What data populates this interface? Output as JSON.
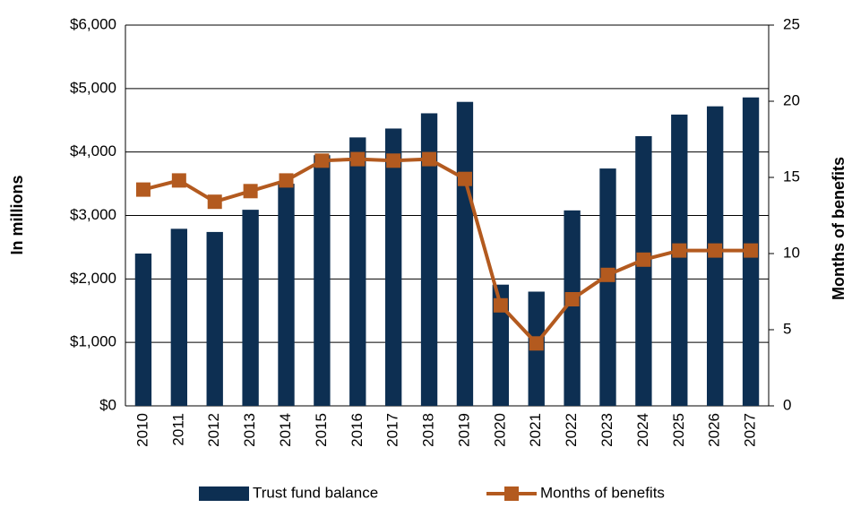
{
  "chart_data": {
    "type": "bar_line",
    "categories": [
      "2010",
      "2011",
      "2012",
      "2013",
      "2014",
      "2015",
      "2016",
      "2017",
      "2018",
      "2019",
      "2020",
      "2021",
      "2022",
      "2023",
      "2024",
      "2025",
      "2026",
      "2027"
    ],
    "series": [
      {
        "name": "Trust fund balance",
        "type": "bar",
        "color": "#0d2f52",
        "values": [
          2400,
          2790,
          2740,
          3090,
          3500,
          3950,
          4230,
          4370,
          4610,
          4790,
          1910,
          1800,
          3080,
          3740,
          4250,
          4590,
          4720,
          4860
        ]
      },
      {
        "name": "Months of benefits",
        "type": "line",
        "axis": "y2",
        "color": "#b35a1f",
        "values": [
          14.2,
          14.8,
          13.4,
          14.1,
          14.8,
          16.1,
          16.2,
          16.1,
          16.2,
          14.9,
          6.6,
          4.1,
          7.0,
          8.6,
          9.6,
          10.2,
          10.2,
          10.2
        ]
      }
    ],
    "ylabel": "In millions",
    "y2label": "Months of benefits",
    "ylim": [
      0,
      6000
    ],
    "yticks": [
      {
        "value": 0,
        "label": "$0"
      },
      {
        "value": 1000,
        "label": "$1,000"
      },
      {
        "value": 2000,
        "label": "$2,000"
      },
      {
        "value": 3000,
        "label": "$3,000"
      },
      {
        "value": 4000,
        "label": "$4,000"
      },
      {
        "value": 5000,
        "label": "$5,000"
      },
      {
        "value": 6000,
        "label": "$6,000"
      }
    ],
    "y2lim": [
      0,
      25
    ],
    "y2ticks": [
      0,
      5,
      10,
      15,
      20,
      25
    ],
    "grid": true,
    "legend": "bottom"
  }
}
